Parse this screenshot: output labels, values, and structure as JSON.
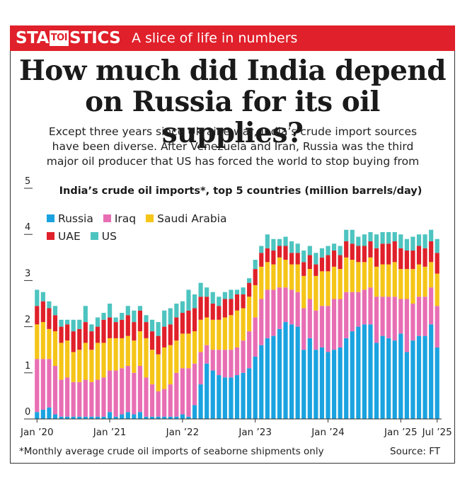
{
  "header": {
    "brand_pre": "STA",
    "brand_toi": "TOI",
    "brand_post": "STICS",
    "tagline": "A slice of life in numbers",
    "banner_color": "#e0202a"
  },
  "headline": {
    "line1": "How much did India depend",
    "line2": "on Russia for its oil supplies?"
  },
  "deck": {
    "line1": "Except three years since Ukraine war, India’s crude import sources",
    "line2": "have been diverse. After Venezuela and Iran, Russia was the third",
    "line3": "major oil producer that US has forced the world to stop buying from"
  },
  "footnote": "*Monthly average crude oil imports of seaborne shipments only",
  "source": "Source: FT",
  "chart_data": {
    "type": "bar",
    "stacked": true,
    "title": "India’s crude oil imports*, top 5 countries (million barrels/day)",
    "xlabel": "",
    "ylabel": "",
    "ylim": [
      0,
      5
    ],
    "yticks": [
      "0",
      "1",
      "2",
      "3",
      "4",
      "5"
    ],
    "x_tick_labels": [
      {
        "label": "Jan ’20",
        "index": 0
      },
      {
        "label": "Jan ’21",
        "index": 12
      },
      {
        "label": "Jan ’22",
        "index": 24
      },
      {
        "label": "Jan ’23",
        "index": 36
      },
      {
        "label": "Jan ’24",
        "index": 48
      },
      {
        "label": "Jan ’25",
        "index": 60
      },
      {
        "label": "Jul ’25",
        "index": 66
      }
    ],
    "categories": [
      "Jan 2020",
      "Feb 2020",
      "Mar 2020",
      "Apr 2020",
      "May 2020",
      "Jun 2020",
      "Jul 2020",
      "Aug 2020",
      "Sep 2020",
      "Oct 2020",
      "Nov 2020",
      "Dec 2020",
      "Jan 2021",
      "Feb 2021",
      "Mar 2021",
      "Apr 2021",
      "May 2021",
      "Jun 2021",
      "Jul 2021",
      "Aug 2021",
      "Sep 2021",
      "Oct 2021",
      "Nov 2021",
      "Dec 2021",
      "Jan 2022",
      "Feb 2022",
      "Mar 2022",
      "Apr 2022",
      "May 2022",
      "Jun 2022",
      "Jul 2022",
      "Aug 2022",
      "Sep 2022",
      "Oct 2022",
      "Nov 2022",
      "Dec 2022",
      "Jan 2023",
      "Feb 2023",
      "Mar 2023",
      "Apr 2023",
      "May 2023",
      "Jun 2023",
      "Jul 2023",
      "Aug 2023",
      "Sep 2023",
      "Oct 2023",
      "Nov 2023",
      "Dec 2023",
      "Jan 2024",
      "Feb 2024",
      "Mar 2024",
      "Apr 2024",
      "May 2024",
      "Jun 2024",
      "Jul 2024",
      "Aug 2024",
      "Sep 2024",
      "Oct 2024",
      "Nov 2024",
      "Dec 2024",
      "Jan 2025",
      "Feb 2025",
      "Mar 2025",
      "Apr 2025",
      "May 2025",
      "Jun 2025",
      "Jul 2025"
    ],
    "series": [
      {
        "name": "Russia",
        "color": "#1aa3e0",
        "values": [
          0.15,
          0.2,
          0.25,
          0.1,
          0.05,
          0.05,
          0.05,
          0.05,
          0.05,
          0.05,
          0.05,
          0.05,
          0.15,
          0.05,
          0.1,
          0.15,
          0.1,
          0.15,
          0.05,
          0.05,
          0.05,
          0.05,
          0.05,
          0.05,
          0.1,
          0.05,
          0.3,
          0.75,
          1.2,
          1.05,
          0.95,
          0.9,
          0.9,
          0.95,
          1.0,
          1.1,
          1.35,
          1.6,
          1.75,
          1.8,
          1.95,
          2.1,
          2.05,
          2.0,
          1.5,
          1.75,
          1.5,
          1.55,
          1.45,
          1.5,
          1.55,
          1.75,
          1.9,
          2.0,
          2.05,
          2.05,
          1.65,
          1.8,
          1.75,
          1.7,
          1.85,
          1.45,
          1.7,
          1.8,
          1.8,
          2.05,
          1.55
        ]
      },
      {
        "name": "Iraq",
        "color": "#e86eb4",
        "values": [
          1.15,
          1.1,
          1.05,
          1.05,
          0.8,
          0.85,
          0.75,
          0.75,
          0.8,
          0.75,
          0.8,
          0.85,
          0.9,
          1.0,
          1.0,
          1.0,
          0.9,
          1.0,
          0.85,
          0.7,
          0.55,
          0.6,
          0.7,
          0.95,
          1.0,
          1.05,
          0.9,
          0.7,
          0.4,
          0.45,
          0.55,
          0.6,
          0.6,
          0.6,
          0.7,
          0.8,
          0.85,
          1.0,
          1.05,
          1.0,
          0.9,
          0.75,
          0.75,
          0.75,
          0.9,
          0.85,
          0.85,
          0.9,
          1.0,
          1.1,
          1.05,
          1.0,
          0.85,
          0.75,
          0.75,
          0.8,
          1.0,
          0.85,
          0.9,
          0.95,
          0.75,
          1.15,
          0.8,
          0.85,
          0.85,
          0.8,
          0.9
        ]
      },
      {
        "name": "Saudi Arabia",
        "color": "#f5c518",
        "values": [
          0.75,
          0.8,
          0.65,
          0.75,
          0.8,
          0.8,
          0.65,
          0.7,
          0.8,
          0.7,
          0.8,
          0.75,
          0.7,
          0.7,
          0.65,
          0.65,
          0.7,
          0.75,
          0.85,
          0.75,
          0.8,
          0.9,
          0.85,
          0.7,
          0.75,
          0.75,
          0.7,
          0.7,
          0.6,
          0.65,
          0.65,
          0.7,
          0.75,
          0.8,
          0.7,
          0.75,
          0.7,
          0.7,
          0.6,
          0.55,
          0.65,
          0.6,
          0.55,
          0.6,
          0.7,
          0.65,
          0.75,
          0.75,
          0.75,
          0.7,
          0.65,
          0.75,
          0.7,
          0.65,
          0.6,
          0.65,
          0.65,
          0.7,
          0.7,
          0.75,
          0.65,
          0.65,
          0.75,
          0.7,
          0.65,
          0.55,
          0.7
        ]
      },
      {
        "name": "UAE",
        "color": "#e0202a",
        "values": [
          0.4,
          0.45,
          0.45,
          0.35,
          0.35,
          0.35,
          0.45,
          0.45,
          0.45,
          0.4,
          0.35,
          0.5,
          0.45,
          0.35,
          0.4,
          0.45,
          0.4,
          0.45,
          0.35,
          0.4,
          0.4,
          0.45,
          0.45,
          0.5,
          0.45,
          0.5,
          0.5,
          0.5,
          0.45,
          0.35,
          0.3,
          0.4,
          0.35,
          0.35,
          0.3,
          0.3,
          0.35,
          0.3,
          0.3,
          0.3,
          0.25,
          0.3,
          0.25,
          0.25,
          0.3,
          0.3,
          0.25,
          0.3,
          0.35,
          0.35,
          0.3,
          0.35,
          0.35,
          0.35,
          0.35,
          0.35,
          0.4,
          0.45,
          0.45,
          0.45,
          0.45,
          0.4,
          0.4,
          0.4,
          0.4,
          0.45,
          0.45
        ]
      },
      {
        "name": "US",
        "color": "#4dc4c0",
        "values": [
          0.35,
          0.2,
          0.15,
          0.2,
          0.15,
          0.1,
          0.25,
          0.2,
          0.35,
          0.15,
          0.2,
          0.15,
          0.3,
          0.1,
          0.15,
          0.2,
          0.25,
          0.1,
          0.15,
          0.25,
          0.3,
          0.35,
          0.35,
          0.3,
          0.25,
          0.45,
          0.3,
          0.3,
          0.2,
          0.25,
          0.2,
          0.15,
          0.2,
          0.1,
          0.15,
          0.1,
          0.2,
          0.15,
          0.3,
          0.25,
          0.15,
          0.2,
          0.25,
          0.2,
          0.25,
          0.2,
          0.25,
          0.2,
          0.2,
          0.15,
          0.2,
          0.25,
          0.3,
          0.2,
          0.25,
          0.2,
          0.3,
          0.25,
          0.25,
          0.2,
          0.3,
          0.25,
          0.3,
          0.25,
          0.3,
          0.25,
          0.3
        ]
      }
    ]
  }
}
